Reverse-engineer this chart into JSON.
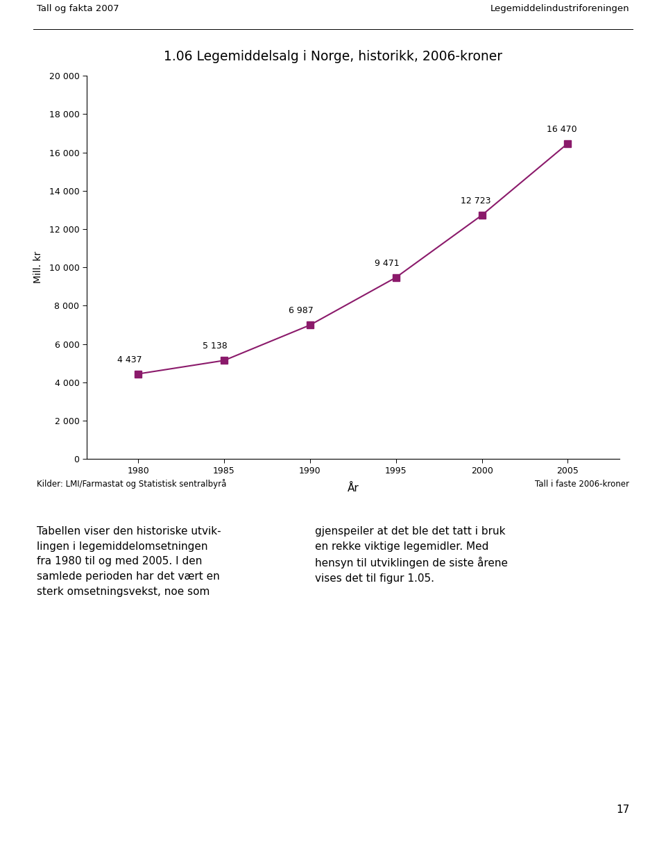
{
  "title": "1.06 Legemiddelsalg i Norge, historikk, 2006-kroner",
  "header_left": "Tall og fakta 2007",
  "header_right": "Legemiddelindustriforeningen",
  "xlabel": "År",
  "ylabel": "Mill. kr",
  "years": [
    1980,
    1985,
    1990,
    1995,
    2000,
    2005
  ],
  "values": [
    4437,
    5138,
    6987,
    9471,
    12723,
    16470
  ],
  "labels": [
    "4 437",
    "5 138",
    "6 987",
    "9 471",
    "12 723",
    "16 470"
  ],
  "ylim": [
    0,
    20000
  ],
  "yticks": [
    0,
    2000,
    4000,
    6000,
    8000,
    10000,
    12000,
    14000,
    16000,
    18000,
    20000
  ],
  "ytick_labels": [
    "0",
    "2 000",
    "4 000",
    "6 000",
    "8 000",
    "10 000",
    "12 000",
    "14 000",
    "16 000",
    "18 000",
    "20 000"
  ],
  "xticks": [
    1980,
    1985,
    1990,
    1995,
    2000,
    2005
  ],
  "line_color": "#8B1A6B",
  "marker_color": "#8B1A6B",
  "marker": "s",
  "marker_size": 7,
  "source_left": "Kilder: LMI/Farmastat og Statistisk sentralbyrå",
  "source_right": "Tall i faste 2006-kroner",
  "body_left": "Tabellen viser den historiske utvik-\nlingen i legemiddelomsetningen\nfra 1980 til og med 2005. I den\nsamlede perioden har det vært en\nsterk omsetningsvekst, noe som",
  "body_right": "gjenspeiler at det ble det tatt i bruk\nen rekke viktige legemidler. Med\nhensyn til utviklingen de siste årene\nvises det til figur 1.05.",
  "page_number": "17",
  "bg_color": "#ffffff",
  "text_color": "#000000"
}
